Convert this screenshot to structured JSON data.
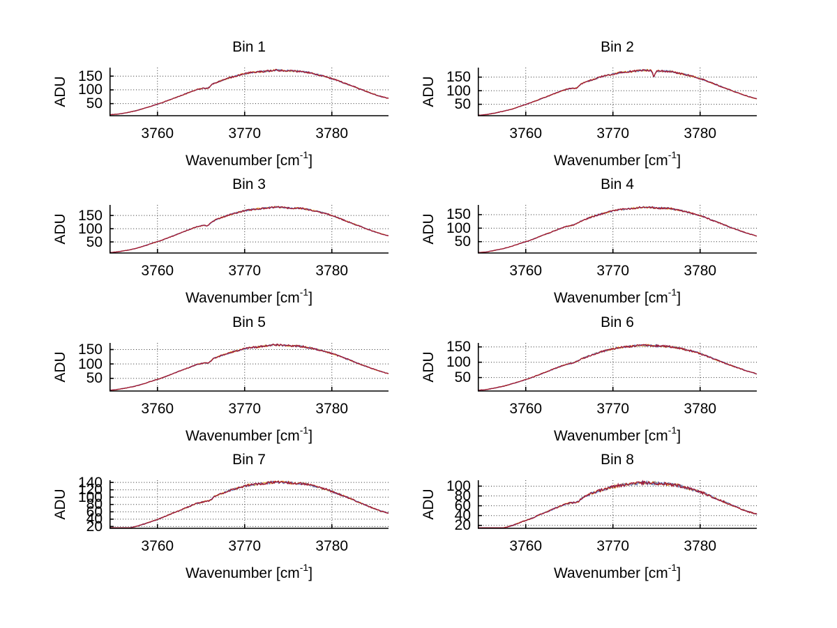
{
  "figure": {
    "background": "#ffffff"
  },
  "axis_labels": {
    "ylabel": "ADU",
    "xlabel_pre": "Wavenumber [cm",
    "xlabel_sup": "-1",
    "xlabel_post": "]"
  },
  "colors": {
    "trace_primary": "#A2142F",
    "trace_secondary": "#E8A82A",
    "trace_tertiary": "#6272B4",
    "grid": "#2b2b2b",
    "axis": "#000000",
    "text": "#000000"
  },
  "chart_data": [
    {
      "type": "line",
      "title": "Bin 1",
      "xlabel": "Wavenumber [cm^-1]",
      "ylabel": "ADU",
      "x_start": 3754.5,
      "x_step": 1.0,
      "x_range": [
        3754.5,
        3786.5
      ],
      "y_range": [
        6,
        181
      ],
      "xticks": [
        3760,
        3770,
        3780
      ],
      "yticks": [
        50,
        100,
        150
      ],
      "grid": true,
      "legend": false,
      "values": [
        9,
        12,
        17,
        24,
        33,
        43,
        53,
        65,
        77,
        89,
        101,
        108,
        124,
        136,
        146,
        155,
        162,
        165,
        168,
        172,
        170,
        169,
        167,
        162,
        155,
        146,
        136,
        124,
        112,
        100,
        88,
        77,
        69
      ],
      "dips": [
        {
          "x": 3765.8,
          "depth": 6,
          "sigma": 0.25
        }
      ]
    },
    {
      "type": "line",
      "title": "Bin 2",
      "xlabel": "Wavenumber [cm^-1]",
      "ylabel": "ADU",
      "x_start": 3754.5,
      "x_step": 1.0,
      "x_range": [
        3754.5,
        3786.5
      ],
      "y_range": [
        8,
        185
      ],
      "xticks": [
        3760,
        3770,
        3780
      ],
      "yticks": [
        50,
        100,
        150
      ],
      "grid": true,
      "legend": false,
      "values": [
        9,
        12,
        18,
        25,
        33,
        44,
        55,
        67,
        79,
        92,
        104,
        111,
        127,
        139,
        150,
        158,
        165,
        169,
        172,
        176,
        174,
        172,
        171,
        165,
        158,
        150,
        139,
        127,
        114,
        102,
        90,
        79,
        70
      ],
      "dips": [
        {
          "x": 3765.8,
          "depth": 6,
          "sigma": 0.25
        },
        {
          "x": 3774.7,
          "depth": 23,
          "sigma": 0.12
        }
      ]
    },
    {
      "type": "line",
      "title": "Bin 3",
      "xlabel": "Wavenumber [cm^-1]",
      "ylabel": "ADU",
      "x_start": 3754.5,
      "x_step": 1.0,
      "x_range": [
        3754.5,
        3786.5
      ],
      "y_range": [
        8,
        190
      ],
      "xticks": [
        3760,
        3770,
        3780
      ],
      "yticks": [
        50,
        100,
        150
      ],
      "grid": true,
      "legend": false,
      "values": [
        9,
        13,
        18,
        25,
        35,
        46,
        56,
        69,
        82,
        95,
        107,
        115,
        131,
        144,
        155,
        164,
        171,
        175,
        178,
        182,
        180,
        178,
        177,
        171,
        164,
        155,
        144,
        131,
        118,
        106,
        93,
        82,
        73
      ],
      "dips": [
        {
          "x": 3765.8,
          "depth": 7,
          "sigma": 0.25
        }
      ]
    },
    {
      "type": "line",
      "title": "Bin 4",
      "xlabel": "Wavenumber [cm^-1]",
      "ylabel": "ADU",
      "x_start": 3754.5,
      "x_step": 1.0,
      "x_range": [
        3754.5,
        3786.5
      ],
      "y_range": [
        8,
        186
      ],
      "xticks": [
        3760,
        3770,
        3780
      ],
      "yticks": [
        50,
        100,
        150
      ],
      "grid": true,
      "legend": false,
      "values": [
        9,
        12,
        18,
        25,
        34,
        45,
        55,
        68,
        80,
        93,
        105,
        112,
        128,
        141,
        151,
        160,
        167,
        171,
        174,
        178,
        176,
        174,
        173,
        167,
        160,
        151,
        141,
        128,
        116,
        103,
        91,
        80,
        71
      ],
      "dips": []
    },
    {
      "type": "line",
      "title": "Bin 5",
      "xlabel": "Wavenumber [cm^-1]",
      "ylabel": "ADU",
      "x_start": 3754.5,
      "x_step": 1.0,
      "x_range": [
        3754.5,
        3786.5
      ],
      "y_range": [
        6,
        173
      ],
      "xticks": [
        3760,
        3770,
        3780
      ],
      "yticks": [
        50,
        100,
        150
      ],
      "grid": true,
      "legend": false,
      "values": [
        8,
        12,
        17,
        23,
        32,
        42,
        51,
        63,
        75,
        86,
        98,
        105,
        120,
        131,
        141,
        149,
        156,
        159,
        163,
        166,
        164,
        163,
        161,
        156,
        149,
        141,
        131,
        120,
        108,
        96,
        85,
        75,
        66
      ],
      "dips": [
        {
          "x": 3765.9,
          "depth": 6,
          "sigma": 0.25
        }
      ]
    },
    {
      "type": "line",
      "title": "Bin 6",
      "xlabel": "Wavenumber [cm^-1]",
      "ylabel": "ADU",
      "x_start": 3754.5,
      "x_step": 1.0,
      "x_range": [
        3754.5,
        3786.5
      ],
      "y_range": [
        6,
        163
      ],
      "xticks": [
        3760,
        3770,
        3780
      ],
      "yticks": [
        50,
        100,
        150
      ],
      "grid": true,
      "legend": false,
      "values": [
        8,
        11,
        16,
        22,
        30,
        39,
        48,
        59,
        70,
        81,
        92,
        98,
        112,
        123,
        133,
        140,
        147,
        150,
        153,
        156,
        154,
        153,
        151,
        147,
        140,
        133,
        123,
        112,
        101,
        90,
        80,
        70,
        62
      ],
      "dips": []
    },
    {
      "type": "line",
      "title": "Bin 7",
      "xlabel": "Wavenumber [cm^-1]",
      "ylabel": "ADU",
      "x_start": 3754.5,
      "x_step": 1.0,
      "x_range": [
        3754.5,
        3786.5
      ],
      "y_range": [
        15,
        146
      ],
      "xticks": [
        3760,
        3770,
        3780
      ],
      "yticks": [
        20,
        40,
        60,
        80,
        100,
        120,
        140
      ],
      "grid": true,
      "legend": false,
      "values": [
        7,
        10,
        14,
        20,
        27,
        35,
        44,
        54,
        63,
        73,
        83,
        89,
        102,
        111,
        120,
        127,
        133,
        135,
        138,
        141,
        140,
        138,
        137,
        133,
        127,
        120,
        111,
        102,
        92,
        82,
        72,
        63,
        56
      ],
      "dips": [
        {
          "x": 3766.0,
          "depth": 5,
          "sigma": 0.25
        }
      ]
    },
    {
      "type": "line",
      "title": "Bin 8",
      "xlabel": "Wavenumber [cm^-1]",
      "ylabel": "ADU",
      "x_start": 3754.5,
      "x_step": 1.0,
      "x_range": [
        3754.5,
        3786.5
      ],
      "y_range": [
        14,
        112
      ],
      "xticks": [
        3760,
        3770,
        3780
      ],
      "yticks": [
        20,
        40,
        60,
        80,
        100
      ],
      "grid": true,
      "legend": false,
      "values": [
        5,
        7,
        11,
        15,
        20,
        27,
        33,
        41,
        48,
        56,
        63,
        67,
        77,
        85,
        91,
        96,
        101,
        103,
        105,
        107,
        106,
        105,
        104,
        101,
        96,
        91,
        85,
        77,
        70,
        62,
        55,
        48,
        43
      ],
      "dips": [
        {
          "x": 3766.0,
          "depth": 4,
          "sigma": 0.25
        }
      ]
    }
  ]
}
